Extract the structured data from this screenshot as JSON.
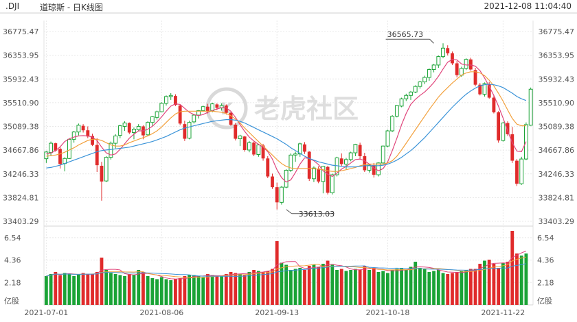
{
  "header": {
    "symbol": ".DJI",
    "title": "道琼斯 - 日K线图",
    "timestamp": "2021-12-08 11:04:40"
  },
  "watermark": "老虎社区",
  "colors": {
    "up": "#1aa336",
    "down": "#e02b2b",
    "ma5": "#e0457b",
    "ma10": "#f2a03c",
    "ma20": "#3a93d8",
    "grid": "#e8e8e8",
    "axis_text": "#555555"
  },
  "chart_data": {
    "type": "candlestick",
    "price_axis": {
      "ticks": [
        "36775.47",
        "36353.95",
        "35932.43",
        "35510.90",
        "35089.38",
        "34667.86",
        "34246.33",
        "33824.81",
        "33403.29"
      ],
      "min": 33403.29,
      "max": 36775.47
    },
    "volume_axis": {
      "ticks": [
        "6.54",
        "4.36",
        "2.18"
      ],
      "unit": "亿股",
      "max": 7.4
    },
    "x_labels": [
      {
        "label": "2021-07-01",
        "index": 0
      },
      {
        "label": "2021-08-06",
        "index": 25
      },
      {
        "label": "2021-09-13",
        "index": 50
      },
      {
        "label": "2021-10-18",
        "index": 74
      },
      {
        "label": "2021-11-22",
        "index": 99
      }
    ],
    "annotations": [
      {
        "text": "36565.73",
        "index": 84,
        "value": 36565.73,
        "kind": "high"
      },
      {
        "text": "33613.03",
        "index": 52,
        "value": 33613.03,
        "kind": "low"
      }
    ],
    "candles": [
      [
        34515,
        34650,
        34440,
        34635
      ],
      [
        34625,
        34820,
        34560,
        34790
      ],
      [
        34790,
        34800,
        34640,
        34660
      ],
      [
        34690,
        34720,
        34340,
        34420
      ],
      [
        34430,
        34540,
        34290,
        34520
      ],
      [
        34520,
        34880,
        34510,
        34860
      ],
      [
        34860,
        35010,
        34800,
        34990
      ],
      [
        34990,
        35140,
        34930,
        35110
      ],
      [
        35100,
        35130,
        34980,
        35020
      ],
      [
        35020,
        35090,
        34880,
        34910
      ],
      [
        34920,
        34960,
        34740,
        34760
      ],
      [
        34760,
        34880,
        34280,
        34400
      ],
      [
        34390,
        34460,
        33770,
        34110
      ],
      [
        34120,
        34560,
        34100,
        34540
      ],
      [
        34540,
        34820,
        34500,
        34790
      ],
      [
        34790,
        34950,
        34700,
        34920
      ],
      [
        34930,
        35120,
        34880,
        35100
      ],
      [
        35090,
        35180,
        35010,
        35150
      ],
      [
        35150,
        35160,
        34950,
        34980
      ],
      [
        34980,
        35070,
        34860,
        35040
      ],
      [
        35030,
        35130,
        35000,
        35090
      ],
      [
        35090,
        35110,
        34860,
        34930
      ],
      [
        34940,
        35180,
        34920,
        35160
      ],
      [
        35160,
        35270,
        35100,
        35260
      ],
      [
        35250,
        35370,
        35210,
        35350
      ],
      [
        35350,
        35520,
        35340,
        35500
      ],
      [
        35500,
        35640,
        35460,
        35620
      ],
      [
        35620,
        35680,
        35560,
        35640
      ],
      [
        35630,
        35660,
        35450,
        35470
      ],
      [
        35460,
        35480,
        35110,
        35140
      ],
      [
        35130,
        35190,
        34830,
        34870
      ],
      [
        34880,
        35190,
        34860,
        35160
      ],
      [
        35170,
        35310,
        35140,
        35290
      ],
      [
        35290,
        35380,
        35230,
        35370
      ],
      [
        35370,
        35460,
        35350,
        35440
      ],
      [
        35440,
        35490,
        35320,
        35360
      ],
      [
        35370,
        35510,
        35340,
        35490
      ],
      [
        35480,
        35500,
        35380,
        35420
      ],
      [
        35420,
        35500,
        35370,
        35460
      ],
      [
        35460,
        35480,
        35300,
        35330
      ],
      [
        35330,
        35340,
        35100,
        35120
      ],
      [
        35120,
        35150,
        34840,
        34870
      ],
      [
        34870,
        34940,
        34740,
        34920
      ],
      [
        34910,
        34920,
        34640,
        34670
      ],
      [
        34670,
        34830,
        34630,
        34800
      ],
      [
        34800,
        34820,
        34560,
        34590
      ],
      [
        34590,
        34780,
        34550,
        34760
      ],
      [
        34750,
        34780,
        34480,
        34520
      ],
      [
        34520,
        34560,
        34170,
        34200
      ],
      [
        34200,
        34250,
        33980,
        34010
      ],
      [
        34010,
        34090,
        33613,
        33740
      ],
      [
        33740,
        34030,
        33700,
        34010
      ],
      [
        34010,
        34330,
        33990,
        34310
      ],
      [
        34310,
        34610,
        34280,
        34580
      ],
      [
        34580,
        34640,
        34460,
        34600
      ],
      [
        34600,
        34800,
        34550,
        34780
      ],
      [
        34770,
        34810,
        34600,
        34640
      ],
      [
        34640,
        34650,
        34120,
        34160
      ],
      [
        34160,
        34380,
        34100,
        34350
      ],
      [
        34340,
        34380,
        34080,
        34110
      ],
      [
        34110,
        34390,
        33900,
        34380
      ],
      [
        34370,
        34390,
        33880,
        33910
      ],
      [
        33910,
        34250,
        33880,
        34230
      ],
      [
        34230,
        34550,
        34200,
        34530
      ],
      [
        34520,
        34610,
        34380,
        34420
      ],
      [
        34420,
        34530,
        34330,
        34500
      ],
      [
        34500,
        34640,
        34470,
        34620
      ],
      [
        34620,
        34780,
        34560,
        34770
      ],
      [
        34760,
        34800,
        34500,
        34560
      ],
      [
        34560,
        34620,
        34280,
        34310
      ],
      [
        34310,
        34420,
        34270,
        34400
      ],
      [
        34400,
        34440,
        34180,
        34230
      ],
      [
        34230,
        34450,
        34200,
        34440
      ],
      [
        34440,
        34750,
        34430,
        34740
      ],
      [
        34740,
        35030,
        34720,
        35010
      ],
      [
        35010,
        35290,
        34990,
        35270
      ],
      [
        35270,
        35470,
        35250,
        35460
      ],
      [
        35450,
        35600,
        35430,
        35580
      ],
      [
        35580,
        35670,
        35540,
        35640
      ],
      [
        35640,
        35720,
        35560,
        35700
      ],
      [
        35700,
        35820,
        35680,
        35800
      ],
      [
        35800,
        35900,
        35760,
        35880
      ],
      [
        35880,
        35990,
        35840,
        35960
      ],
      [
        35960,
        36120,
        35900,
        36100
      ],
      [
        36100,
        36200,
        36050,
        36180
      ],
      [
        36180,
        36350,
        36130,
        36330
      ],
      [
        36330,
        36566,
        36300,
        36480
      ],
      [
        36480,
        36530,
        36350,
        36390
      ],
      [
        36390,
        36420,
        36180,
        36210
      ],
      [
        36210,
        36250,
        35960,
        36000
      ],
      [
        36000,
        36150,
        35970,
        36120
      ],
      [
        36120,
        36300,
        36090,
        36280
      ],
      [
        36280,
        36310,
        36080,
        36100
      ],
      [
        36090,
        36130,
        35800,
        35830
      ],
      [
        35830,
        35860,
        35640,
        35660
      ],
      [
        35660,
        35870,
        35620,
        35850
      ],
      [
        35840,
        35880,
        35580,
        35600
      ],
      [
        35600,
        35650,
        35320,
        35340
      ],
      [
        35340,
        35360,
        34800,
        34840
      ],
      [
        34840,
        35170,
        34820,
        35150
      ],
      [
        35150,
        35180,
        34920,
        34950
      ],
      [
        34950,
        35080,
        34440,
        34480
      ],
      [
        34480,
        34510,
        34030,
        34070
      ],
      [
        34070,
        34550,
        34050,
        34510
      ],
      [
        34510,
        35160,
        34490,
        35120
      ],
      [
        35110,
        35780,
        35100,
        35750
      ]
    ],
    "ma5": [
      34600,
      34615,
      34660,
      34725,
      34820,
      34870,
      34900,
      34920,
      34925,
      34920,
      34900,
      34840,
      34720,
      34620,
      34580,
      34600,
      34680,
      34780,
      34880,
      34950,
      35010,
      35010,
      35040,
      35090,
      35170,
      35260,
      35360,
      35450,
      35490,
      35480,
      35410,
      35340,
      35300,
      35280,
      35300,
      35340,
      35370,
      35400,
      35420,
      35420,
      35360,
      35250,
      35120,
      35000,
      34900,
      34830,
      34770,
      34720,
      34640,
      34510,
      34320,
      34180,
      34100,
      34140,
      34270,
      34420,
      34530,
      34520,
      34480,
      34410,
      34300,
      34240,
      34200,
      34260,
      34330,
      34380,
      34440,
      34500,
      34510,
      34480,
      34420,
      34350,
      34300,
      34340,
      34460,
      34660,
      34880,
      35120,
      35320,
      35480,
      35570,
      35640,
      35700,
      35780,
      35870,
      35980,
      36110,
      36230,
      36280,
      36270,
      36200,
      36180,
      36180,
      36160,
      36080,
      35950,
      35800,
      35640,
      35450,
      35240,
      35010,
      34800,
      34650,
      34640,
      34820
    ],
    "ma10": [
      34560,
      34570,
      34580,
      34600,
      34630,
      34670,
      34710,
      34760,
      34800,
      34840,
      34860,
      34860,
      34840,
      34800,
      34760,
      34740,
      34740,
      34760,
      34800,
      34830,
      34860,
      34890,
      34920,
      34960,
      35010,
      35080,
      35160,
      35240,
      35310,
      35350,
      35360,
      35360,
      35360,
      35360,
      35360,
      35360,
      35360,
      35350,
      35340,
      35320,
      35280,
      35220,
      35150,
      35060,
      34980,
      34900,
      34820,
      34740,
      34660,
      34580,
      34500,
      34430,
      34380,
      34350,
      34340,
      34340,
      34340,
      34340,
      34340,
      34330,
      34320,
      34300,
      34290,
      34290,
      34300,
      34320,
      34340,
      34360,
      34390,
      34410,
      34420,
      34420,
      34420,
      34420,
      34440,
      34480,
      34560,
      34670,
      34790,
      34910,
      35030,
      35150,
      35270,
      35390,
      35500,
      35610,
      35700,
      35780,
      35860,
      35930,
      36000,
      36040,
      36060,
      36060,
      36040,
      35990,
      35910,
      35810,
      35680,
      35540,
      35380,
      35230,
      35130,
      35100,
      35100
    ],
    "ma20": [
      34350,
      34360,
      34380,
      34400,
      34430,
      34460,
      34490,
      34520,
      34550,
      34580,
      34610,
      34640,
      34660,
      34670,
      34680,
      34690,
      34700,
      34710,
      34720,
      34740,
      34760,
      34780,
      34800,
      34820,
      34850,
      34880,
      34910,
      34950,
      34990,
      35030,
      35060,
      35080,
      35100,
      35120,
      35140,
      35160,
      35180,
      35190,
      35200,
      35210,
      35210,
      35200,
      35180,
      35150,
      35110,
      35070,
      35030,
      34990,
      34950,
      34910,
      34870,
      34820,
      34770,
      34710,
      34660,
      34610,
      34560,
      34520,
      34490,
      34460,
      34440,
      34420,
      34400,
      34390,
      34380,
      34370,
      34370,
      34370,
      34380,
      34390,
      34390,
      34390,
      34390,
      34400,
      34420,
      34450,
      34490,
      34540,
      34600,
      34660,
      34730,
      34810,
      34890,
      34980,
      35070,
      35160,
      35250,
      35340,
      35430,
      35510,
      35590,
      35660,
      35720,
      35770,
      35810,
      35830,
      35840,
      35830,
      35810,
      35780,
      35730,
      35680,
      35620,
      35580,
      35550
    ],
    "volume": [
      2.8,
      3.0,
      3.2,
      2.9,
      3.1,
      3.0,
      2.8,
      3.0,
      3.1,
      3.0,
      3.0,
      3.2,
      4.6,
      3.4,
      3.1,
      3.0,
      2.9,
      2.8,
      3.0,
      2.9,
      3.4,
      3.2,
      2.8,
      2.6,
      2.5,
      2.7,
      2.5,
      2.4,
      2.5,
      2.6,
      2.8,
      2.9,
      2.9,
      2.8,
      2.7,
      3.0,
      2.9,
      2.8,
      2.8,
      3.0,
      3.2,
      3.1,
      3.0,
      2.9,
      3.2,
      3.4,
      3.3,
      3.2,
      3.3,
      3.5,
      6.2,
      4.1,
      3.9,
      3.4,
      3.5,
      3.6,
      3.4,
      3.8,
      3.9,
      3.7,
      4.0,
      4.3,
      3.9,
      3.4,
      3.5,
      3.3,
      3.4,
      3.5,
      3.4,
      3.8,
      3.4,
      3.6,
      3.2,
      3.3,
      3.1,
      3.4,
      3.5,
      3.6,
      3.4,
      3.7,
      4.2,
      3.6,
      3.5,
      3.2,
      3.3,
      3.4,
      3.1,
      3.0,
      3.1,
      3.2,
      3.3,
      3.4,
      3.5,
      3.5,
      4.0,
      4.3,
      4.4,
      4.0,
      3.6,
      4.1,
      4.2,
      7.2,
      5.0,
      4.8,
      5.0
    ]
  }
}
